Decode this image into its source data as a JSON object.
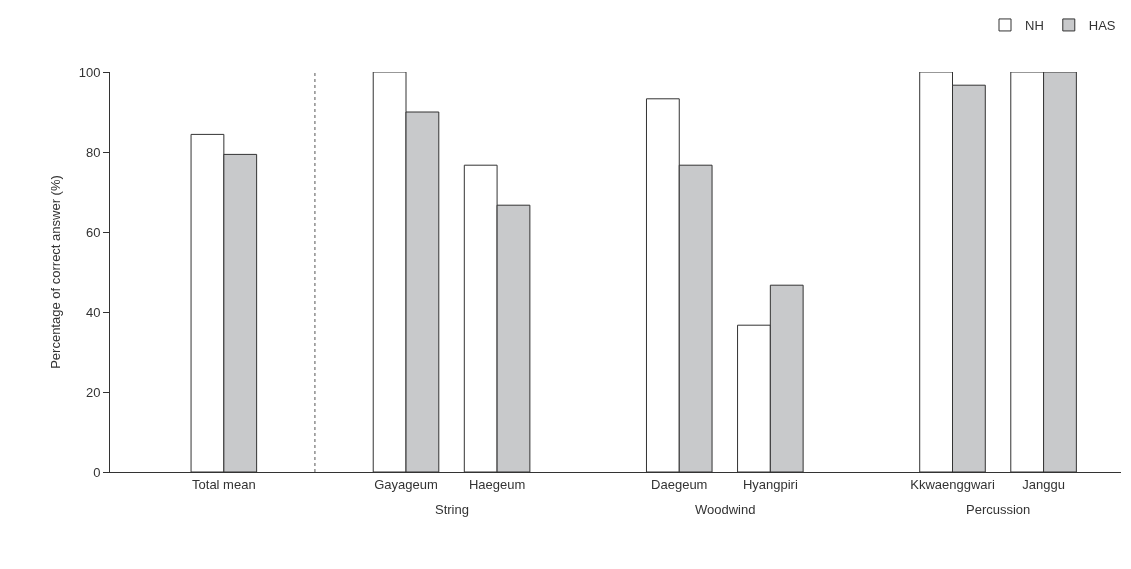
{
  "chart_data": {
    "type": "bar",
    "ylabel": "Percentage of correct answer (%)",
    "categories": [
      "Total mean",
      null,
      "Gayageum",
      "Haegeum",
      null,
      "Daegeum",
      "Hyangpiri",
      null,
      "Kkwaenggwari",
      "Janggu"
    ],
    "series": [
      {
        "name": "NH",
        "color": "#ffffff",
        "values": [
          84.4,
          null,
          100,
          76.7,
          null,
          93.3,
          36.7,
          null,
          100,
          100
        ]
      },
      {
        "name": "HAS",
        "color": "#c8c9cb",
        "values": [
          79.4,
          null,
          90,
          66.7,
          null,
          76.7,
          46.7,
          null,
          96.7,
          100
        ]
      }
    ],
    "ylim": [
      0,
      100
    ],
    "yticks": [
      0,
      20,
      40,
      60,
      80,
      100
    ],
    "ref_lines": [
      {
        "axis": "x",
        "value": null,
        "line_style": "dotted",
        "color": "#555555"
      }
    ],
    "annotations": [
      "String",
      "Woodwind",
      "Percussion"
    ],
    "legend": "top right"
  }
}
